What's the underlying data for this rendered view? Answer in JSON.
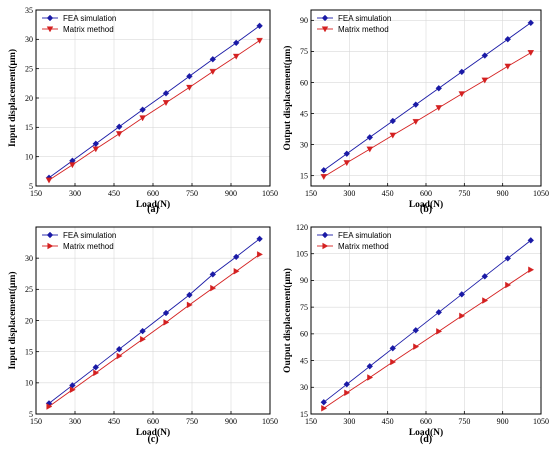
{
  "chart_data": [
    {
      "type": "line",
      "panel_label": "(a)",
      "xlabel": "Load(N)",
      "ylabel": "Input displacement(μm)",
      "xlim": [
        150,
        1050
      ],
      "ylim": [
        5,
        35
      ],
      "xticks": [
        150,
        300,
        450,
        600,
        750,
        900,
        1050
      ],
      "yticks": [
        5,
        10,
        15,
        20,
        25,
        30,
        35
      ],
      "legend_position": "top-left",
      "grid": true,
      "x": [
        200,
        290,
        380,
        470,
        560,
        650,
        740,
        830,
        920,
        1010
      ],
      "series": [
        {
          "name": "FEA  simulation",
          "marker": "diamond",
          "color": "#1a1aa6",
          "values": [
            6.4,
            9.3,
            12.2,
            15.1,
            18.0,
            20.8,
            23.7,
            26.6,
            29.4,
            32.3
          ]
        },
        {
          "name": "Matrix method",
          "marker": "triangle-down",
          "color": "#d42020",
          "values": [
            6.0,
            8.6,
            11.3,
            13.9,
            16.6,
            19.2,
            21.8,
            24.5,
            27.1,
            29.8
          ]
        }
      ]
    },
    {
      "type": "line",
      "panel_label": "(b)",
      "xlabel": "Load(N)",
      "ylabel": "Output displacement(μm)",
      "xlim": [
        150,
        1050
      ],
      "ylim": [
        10,
        95
      ],
      "xticks": [
        150,
        300,
        450,
        600,
        750,
        900,
        1050
      ],
      "yticks": [
        15,
        30,
        45,
        60,
        75,
        90
      ],
      "legend_position": "top-left",
      "grid": true,
      "x": [
        200,
        290,
        380,
        470,
        560,
        650,
        740,
        830,
        920,
        1010
      ],
      "series": [
        {
          "name": "FEA  simulation",
          "marker": "diamond",
          "color": "#1a1aa6",
          "values": [
            17.6,
            25.6,
            33.5,
            41.4,
            49.3,
            57.2,
            65.1,
            73.0,
            80.9,
            88.8
          ]
        },
        {
          "name": "Matrix method",
          "marker": "triangle-down",
          "color": "#d42020",
          "values": [
            14.5,
            21.2,
            27.8,
            34.5,
            41.1,
            47.8,
            54.5,
            61.1,
            67.8,
            74.4
          ]
        }
      ]
    },
    {
      "type": "line",
      "panel_label": "(c)",
      "xlabel": "Load(N)",
      "ylabel": "Input displacement(μm)",
      "xlim": [
        150,
        1050
      ],
      "ylim": [
        5,
        35
      ],
      "xticks": [
        150,
        300,
        450,
        600,
        750,
        900,
        1050
      ],
      "yticks": [
        5,
        10,
        15,
        20,
        25,
        30
      ],
      "legend_position": "top-left",
      "grid": true,
      "x": [
        200,
        290,
        380,
        470,
        560,
        650,
        740,
        830,
        920,
        1010
      ],
      "series": [
        {
          "name": "FEA  simulation",
          "marker": "diamond",
          "color": "#1a1aa6",
          "values": [
            6.7,
            9.6,
            12.5,
            15.4,
            18.3,
            21.2,
            24.1,
            27.4,
            30.2,
            33.1
          ]
        },
        {
          "name": "Matrix method",
          "marker": "triangle-right",
          "color": "#d42020",
          "values": [
            6.2,
            8.9,
            11.6,
            14.3,
            17.0,
            19.7,
            22.5,
            25.2,
            27.9,
            30.6
          ]
        }
      ]
    },
    {
      "type": "line",
      "panel_label": "(d)",
      "xlabel": "Load(N)",
      "ylabel": "Output displacement(μm)",
      "xlim": [
        150,
        1050
      ],
      "ylim": [
        15,
        120
      ],
      "xticks": [
        150,
        300,
        450,
        600,
        750,
        900,
        1050
      ],
      "yticks": [
        15,
        30,
        45,
        60,
        75,
        90,
        105,
        120
      ],
      "legend_position": "top-left",
      "grid": true,
      "x": [
        200,
        290,
        380,
        470,
        560,
        650,
        740,
        830,
        920,
        1010
      ],
      "series": [
        {
          "name": "FEA  simulation",
          "marker": "diamond",
          "color": "#1a1aa6",
          "values": [
            21.6,
            31.7,
            41.8,
            51.9,
            62.0,
            72.1,
            82.2,
            92.3,
            102.4,
            112.5
          ]
        },
        {
          "name": "Matrix method",
          "marker": "triangle-right",
          "color": "#d42020",
          "values": [
            18.2,
            26.9,
            35.5,
            44.2,
            52.8,
            61.4,
            70.1,
            78.7,
            87.4,
            96.0
          ]
        }
      ]
    }
  ]
}
